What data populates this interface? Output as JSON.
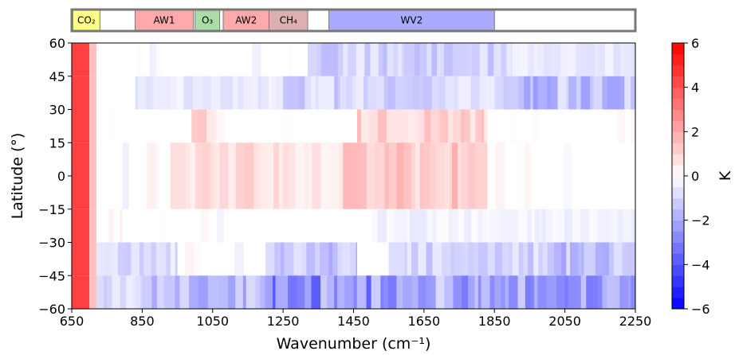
{
  "chart_data": {
    "type": "heatmap",
    "xlabel": "Wavenumber (cm⁻¹)",
    "ylabel": "Latitude (°)",
    "xlim": [
      650,
      2250
    ],
    "ylim": [
      -60,
      60
    ],
    "x_ticks": [
      "650",
      "850",
      "1050",
      "1250",
      "1450",
      "1650",
      "1850",
      "2050",
      "2250"
    ],
    "y_ticks": [
      "60",
      "45",
      "30",
      "15",
      "0",
      "−15",
      "−30",
      "−45",
      "−60"
    ],
    "colorbar": {
      "label": "K",
      "range": [
        -6,
        6
      ],
      "ticks": [
        "6",
        "4",
        "2",
        "0",
        "−2",
        "−4",
        "−6"
      ],
      "colormap": "bwr",
      "colors": {
        "min": "#0000ff",
        "mid": "#ffffff",
        "max": "#ff0000"
      }
    },
    "latitude_bands": [
      {
        "lat_range": [
          45,
          60
        ],
        "values": [
          {
            "x": [
              650,
              700
            ],
            "v": 4.5
          },
          {
            "x": [
              700,
              720
            ],
            "v": 1.5
          },
          {
            "x": [
              720,
              1320
            ],
            "v": 0
          },
          {
            "x": [
              1320,
              1900
            ],
            "v": -1.0
          },
          {
            "x": [
              1900,
              2250
            ],
            "v": -0.5
          }
        ]
      },
      {
        "lat_range": [
          30,
          45
        ],
        "values": [
          {
            "x": [
              650,
              700
            ],
            "v": 4.5
          },
          {
            "x": [
              700,
              720
            ],
            "v": 1.5
          },
          {
            "x": [
              720,
              830
            ],
            "v": 0
          },
          {
            "x": [
              830,
              1250
            ],
            "v": -0.5
          },
          {
            "x": [
              1250,
              1900
            ],
            "v": -1.0
          },
          {
            "x": [
              1900,
              2250
            ],
            "v": -1.5
          }
        ]
      },
      {
        "lat_range": [
          15,
          30
        ],
        "values": [
          {
            "x": [
              650,
              700
            ],
            "v": 4.5
          },
          {
            "x": [
              700,
              720
            ],
            "v": 1.5
          },
          {
            "x": [
              720,
              990
            ],
            "v": 0
          },
          {
            "x": [
              990,
              1060
            ],
            "v": 1.0
          },
          {
            "x": [
              1060,
              1460
            ],
            "v": 0
          },
          {
            "x": [
              1460,
              1830
            ],
            "v": 1.0
          },
          {
            "x": [
              1830,
              2250
            ],
            "v": 0
          }
        ]
      },
      {
        "lat_range": [
          -15,
          15
        ],
        "values": [
          {
            "x": [
              650,
              700
            ],
            "v": 4.5
          },
          {
            "x": [
              700,
              720
            ],
            "v": 1.5
          },
          {
            "x": [
              720,
              930
            ],
            "v": 0
          },
          {
            "x": [
              930,
              1000
            ],
            "v": 0.5
          },
          {
            "x": [
              1000,
              1060
            ],
            "v": 1.0
          },
          {
            "x": [
              1060,
              1250
            ],
            "v": 0.8
          },
          {
            "x": [
              1250,
              1420
            ],
            "v": 0.5
          },
          {
            "x": [
              1420,
              1830
            ],
            "v": 1.2
          },
          {
            "x": [
              1830,
              2250
            ],
            "v": 0
          }
        ]
      },
      {
        "lat_range": [
          -30,
          -15
        ],
        "values": [
          {
            "x": [
              650,
              700
            ],
            "v": 4.5
          },
          {
            "x": [
              700,
              720
            ],
            "v": 1.5
          },
          {
            "x": [
              720,
              1500
            ],
            "v": 0
          },
          {
            "x": [
              1500,
              1750
            ],
            "v": -0.3
          },
          {
            "x": [
              1750,
              2250
            ],
            "v": -0.3
          }
        ]
      },
      {
        "lat_range": [
          -45,
          -30
        ],
        "values": [
          {
            "x": [
              650,
              700
            ],
            "v": 4.5
          },
          {
            "x": [
              700,
              720
            ],
            "v": 1.5
          },
          {
            "x": [
              720,
              950
            ],
            "v": -0.8
          },
          {
            "x": [
              950,
              1200
            ],
            "v": 0
          },
          {
            "x": [
              1200,
              1460
            ],
            "v": -1.5
          },
          {
            "x": [
              1460,
              1550
            ],
            "v": 0
          },
          {
            "x": [
              1550,
              2000
            ],
            "v": -1.0
          },
          {
            "x": [
              2000,
              2250
            ],
            "v": -1.5
          }
        ]
      },
      {
        "lat_range": [
          -60,
          -45
        ],
        "values": [
          {
            "x": [
              650,
              700
            ],
            "v": 4.5
          },
          {
            "x": [
              700,
              720
            ],
            "v": 1.5
          },
          {
            "x": [
              720,
              850
            ],
            "v": -1.0
          },
          {
            "x": [
              850,
              1200
            ],
            "v": -1.5
          },
          {
            "x": [
              1200,
              1500
            ],
            "v": -2.5
          },
          {
            "x": [
              1500,
              1850
            ],
            "v": -2.0
          },
          {
            "x": [
              1850,
              2250
            ],
            "v": -2.0
          }
        ]
      }
    ],
    "spectral_bands": [
      {
        "label": "CO₂",
        "x": [
          653,
          730
        ],
        "color": "#ffff88"
      },
      {
        "label": "AW1",
        "x": [
          830,
          995
        ],
        "color": "#ffaaaa"
      },
      {
        "label": "O₃",
        "x": [
          1000,
          1070
        ],
        "color": "#aaddaa"
      },
      {
        "label": "AW2",
        "x": [
          1080,
          1210
        ],
        "color": "#ffaaaa"
      },
      {
        "label": "CH₄",
        "x": [
          1210,
          1320
        ],
        "color": "#ddb0b0"
      },
      {
        "label": "WV2",
        "x": [
          1380,
          1850
        ],
        "color": "#aaaaff"
      }
    ]
  }
}
